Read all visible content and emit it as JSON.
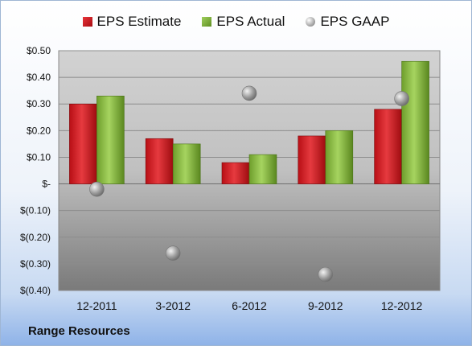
{
  "footer": {
    "company": "Range Resources"
  },
  "chart_data": {
    "type": "bar",
    "categories": [
      "12-2011",
      "3-2012",
      "6-2012",
      "9-2012",
      "12-2012"
    ],
    "series": [
      {
        "name": "EPS Estimate",
        "kind": "bar",
        "color": "#c8161c",
        "values": [
          0.3,
          0.17,
          0.08,
          0.18,
          0.28
        ]
      },
      {
        "name": "EPS Actual",
        "kind": "bar",
        "color": "#7fb03c",
        "values": [
          0.33,
          0.15,
          0.11,
          0.2,
          0.46
        ]
      },
      {
        "name": "EPS GAAP",
        "kind": "scatter",
        "color": "#a0a0a0",
        "values": [
          -0.02,
          -0.26,
          0.34,
          -0.34,
          0.32
        ]
      }
    ],
    "yticks": [
      0.5,
      0.4,
      0.3,
      0.2,
      0.1,
      0,
      -0.1,
      -0.2,
      -0.3,
      -0.4
    ],
    "ytick_labels": [
      "$0.50",
      "$0.40",
      "$0.30",
      "$0.20",
      "$0.10",
      "$-",
      "$(0.10)",
      "$(0.20)",
      "$(0.30)",
      "$(0.40)"
    ],
    "ylim": [
      -0.4,
      0.5
    ],
    "grid": true,
    "legend_position": "top"
  }
}
